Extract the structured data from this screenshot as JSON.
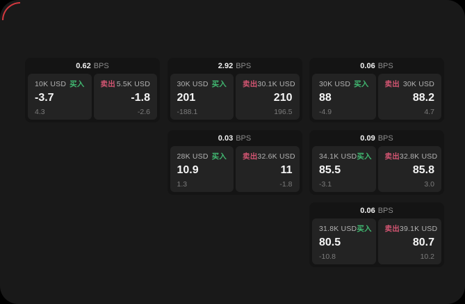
{
  "window": {
    "outer_background": "#000000",
    "background": "#191919",
    "corner_accent_color": "#dc3a40"
  },
  "labels": {
    "buy": "买入",
    "sell": "卖出",
    "bps_unit": "BPS"
  },
  "colors": {
    "buy_green": "#41b871",
    "sell_red": "#d25572"
  },
  "cards": [
    {
      "grid_row": 1,
      "grid_col": 1,
      "bps": "0.62",
      "buy": {
        "amount": "10K USD",
        "price": "-3.7",
        "delta": "4.3"
      },
      "sell": {
        "amount": "5.5K USD",
        "price": "-1.8",
        "delta": "-2.6"
      }
    },
    {
      "grid_row": 1,
      "grid_col": 2,
      "bps": "2.92",
      "buy": {
        "amount": "30K USD",
        "price": "201",
        "delta": "-188.1"
      },
      "sell": {
        "amount": "30.1K USD",
        "price": "210",
        "delta": "196.5"
      }
    },
    {
      "grid_row": 1,
      "grid_col": 3,
      "bps": "0.06",
      "buy": {
        "amount": "30K USD",
        "price": "88",
        "delta": "-4.9"
      },
      "sell": {
        "amount": "30K USD",
        "price": "88.2",
        "delta": "4.7"
      }
    },
    {
      "grid_row": 2,
      "grid_col": 2,
      "bps": "0.03",
      "buy": {
        "amount": "28K USD",
        "price": "10.9",
        "delta": "1.3"
      },
      "sell": {
        "amount": "32.6K USD",
        "price": "11",
        "delta": "-1.8"
      }
    },
    {
      "grid_row": 2,
      "grid_col": 3,
      "bps": "0.09",
      "buy": {
        "amount": "34.1K USD",
        "price": "85.5",
        "delta": "-3.1"
      },
      "sell": {
        "amount": "32.8K USD",
        "price": "85.8",
        "delta": "3.0"
      }
    },
    {
      "grid_row": 3,
      "grid_col": 3,
      "bps": "0.06",
      "buy": {
        "amount": "31.8K USD",
        "price": "80.5",
        "delta": "-10.8"
      },
      "sell": {
        "amount": "39.1K USD",
        "price": "80.7",
        "delta": "10.2"
      }
    }
  ]
}
